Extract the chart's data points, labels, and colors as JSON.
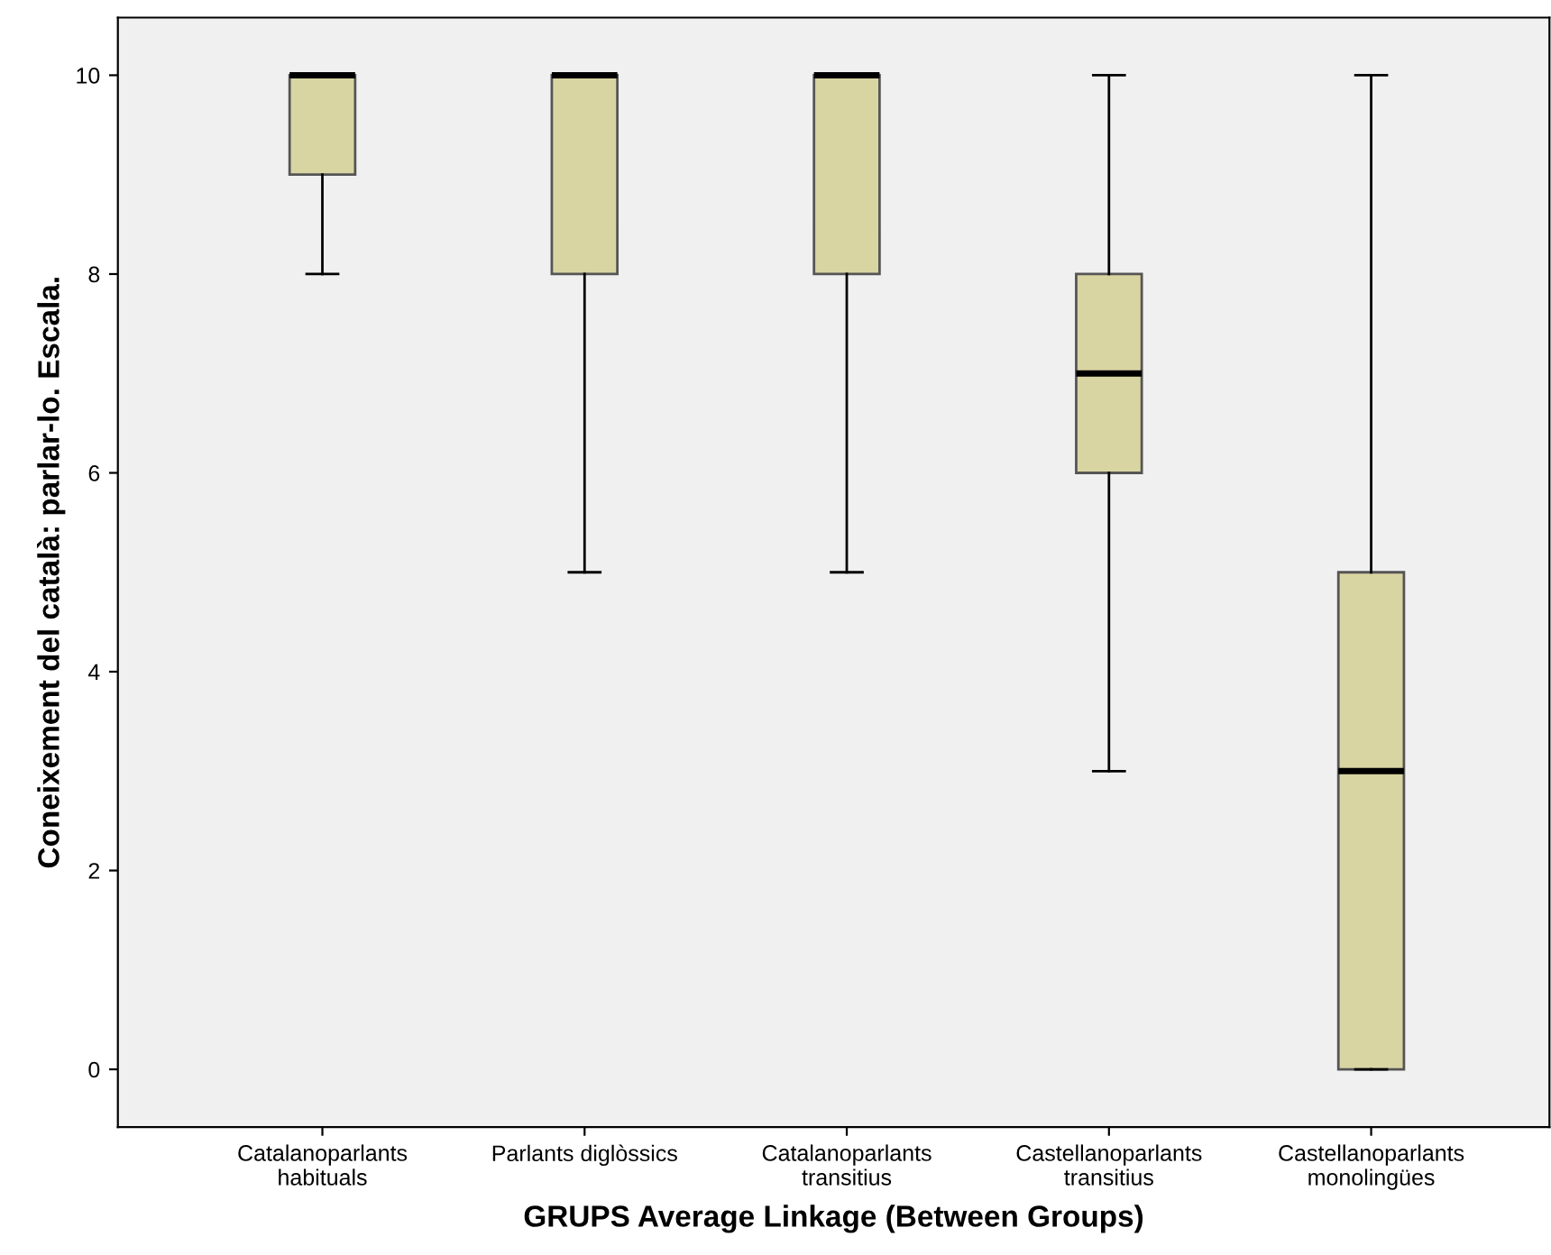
{
  "chart_data": {
    "type": "box",
    "xlabel": "GRUPS Average Linkage (Between Groups)",
    "ylabel": "Coneixement del català: parlar-lo. Escala.",
    "categories": [
      "Catalanoparlants\nhabituals",
      "Parlants diglòssics",
      "Catalanoparlants\ntransitius",
      "Castellanoparlants\ntransitius",
      "Castellanoparlants\nmonolingües"
    ],
    "boxes": [
      {
        "low": 8,
        "q1": 9,
        "median": 10,
        "q3": 10,
        "high": 10
      },
      {
        "low": 5,
        "q1": 8,
        "median": 10,
        "q3": 10,
        "high": 10
      },
      {
        "low": 5,
        "q1": 8,
        "median": 10,
        "q3": 10,
        "high": 10
      },
      {
        "low": 3,
        "q1": 6,
        "median": 7,
        "q3": 8,
        "high": 10
      },
      {
        "low": 0,
        "q1": 0,
        "median": 3,
        "q3": 5,
        "high": 10
      }
    ],
    "color": "#d9d5a3",
    "ylim": [
      -0.58,
      10.58
    ],
    "yticks": [
      0,
      2,
      4,
      6,
      8,
      10
    ],
    "grid": false
  }
}
